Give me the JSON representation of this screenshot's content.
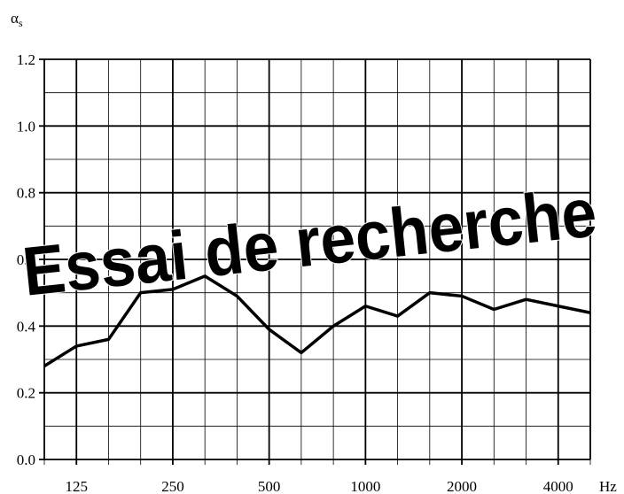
{
  "chart_data": {
    "type": "line",
    "ylabel": "α",
    "ylabel_sub": "s",
    "xlabel": "Hz",
    "watermark": "Essai de recherche",
    "categories": [
      null,
      "125",
      null,
      null,
      "250",
      null,
      null,
      "500",
      null,
      null,
      "1000",
      null,
      null,
      "2000",
      null,
      null,
      "4000",
      null
    ],
    "series": [
      {
        "name": null,
        "color": "#000000",
        "values": [
          0.28,
          0.34,
          0.36,
          0.5,
          0.51,
          0.55,
          0.49,
          0.39,
          0.32,
          0.4,
          0.46,
          0.43,
          0.5,
          0.49,
          0.45,
          0.48,
          0.46,
          0.44
        ]
      }
    ],
    "ylim": [
      0,
      1.2
    ],
    "yticks": [
      {
        "value": 0,
        "label": "0.0"
      },
      {
        "value": 0.2,
        "label": "0.2"
      },
      {
        "value": 0.4,
        "label": "0.4"
      },
      {
        "value": 0.6,
        "label": "0.6"
      },
      {
        "value": 0.8,
        "label": "0.8"
      },
      {
        "value": 1.0,
        "label": "1.0"
      },
      {
        "value": 1.2,
        "label": "1.2"
      }
    ],
    "yticks_minor": [
      0.1,
      0.3,
      0.5,
      0.7,
      0.9,
      1.1
    ],
    "grid": true
  }
}
